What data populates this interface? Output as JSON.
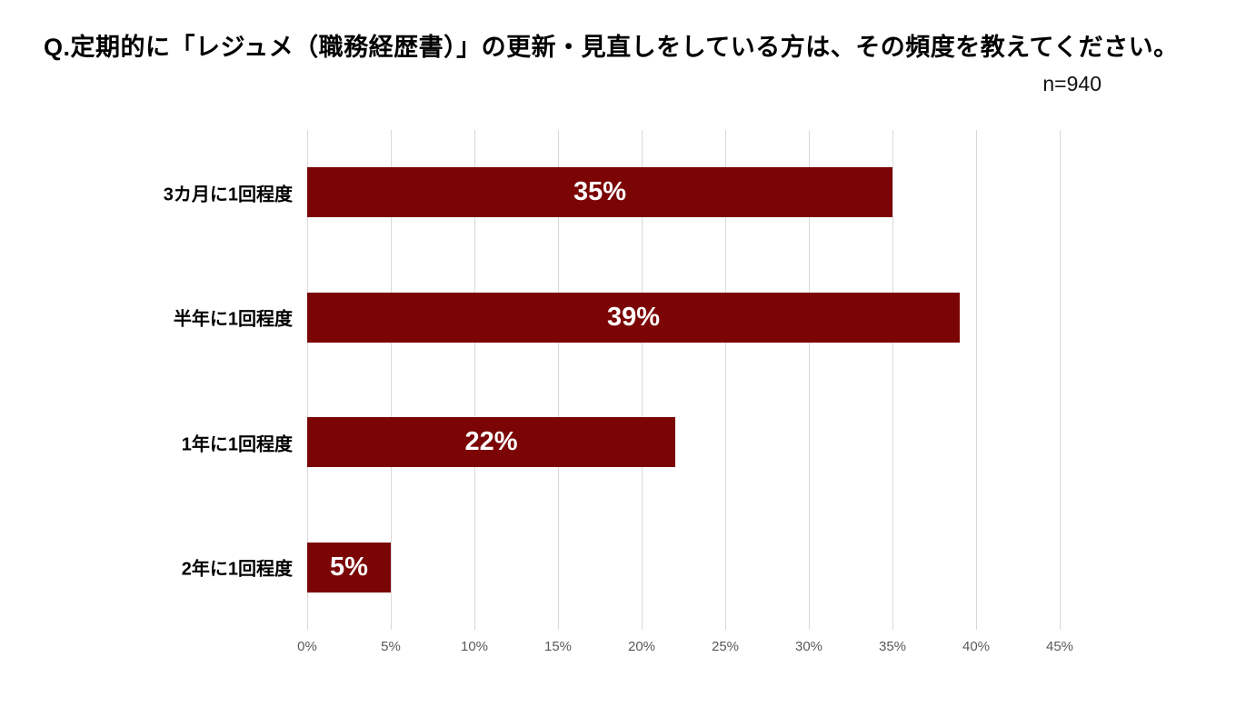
{
  "header": {
    "title": "Q.定期的に「レジュメ（職務経歴書）」の更新・見直しをしている方は、その頻度を教えてください。",
    "sample_size": "n=940"
  },
  "chart_data": {
    "type": "bar",
    "orientation": "horizontal",
    "title": "",
    "xlabel": "",
    "ylabel": "",
    "categories": [
      "3カ月に1回程度",
      "半年に1回程度",
      "1年に1回程度",
      "2年に1回程度"
    ],
    "values": [
      35,
      39,
      22,
      5
    ],
    "value_labels": [
      "35%",
      "39%",
      "22%",
      "5%"
    ],
    "xlim": [
      0,
      45
    ],
    "x_tick_values": [
      0,
      5,
      10,
      15,
      20,
      25,
      30,
      35,
      40,
      45
    ],
    "x_tick_labels": [
      "0%",
      "5%",
      "10%",
      "15%",
      "20%",
      "25%",
      "30%",
      "35%",
      "40%",
      "45%"
    ],
    "grid": true,
    "legend_position": "none",
    "colors": {
      "bar": "#7B0505",
      "bar_value_label": "#ffffff",
      "gridline": "#D9D9D9",
      "tick_label": "#595959",
      "background": "#ffffff"
    }
  }
}
